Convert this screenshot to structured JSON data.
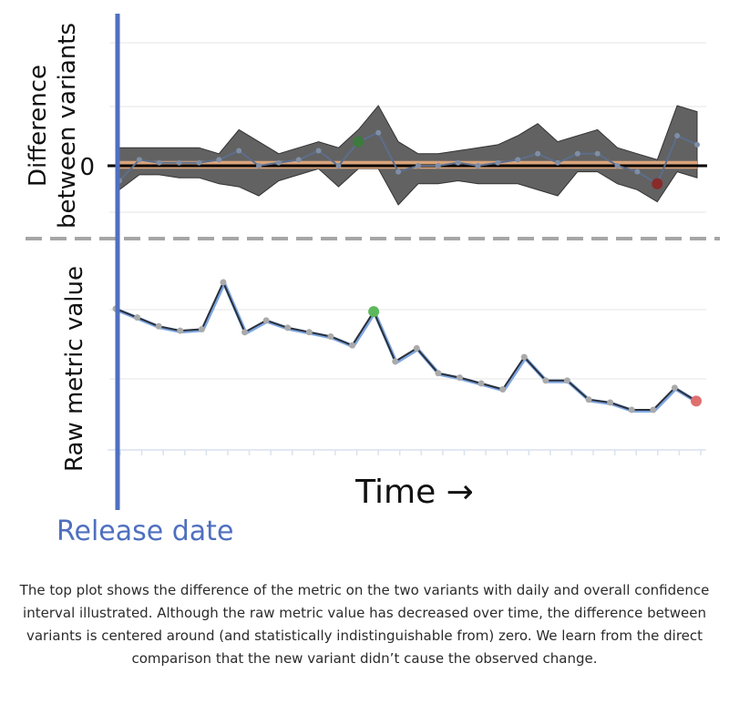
{
  "chart_data": [
    {
      "type": "line",
      "panel": "top",
      "ylabel": "Difference between variants",
      "ylabel_lines": [
        "Difference",
        "between variants"
      ],
      "y_tick_labels": [
        "0"
      ],
      "grid": true,
      "series": [
        {
          "values": [
            -0.25,
            0.1,
            0.05,
            0.05,
            0.05,
            0.1,
            0.25,
            0.0,
            0.05,
            0.1,
            0.25,
            0.0,
            0.4,
            0.55,
            -0.1,
            0.0,
            0.0,
            0.05,
            0.0,
            0.05,
            0.1,
            0.2,
            0.05,
            0.2,
            0.2,
            0.0,
            -0.1,
            -0.3,
            0.5,
            0.35
          ],
          "ci_upper": [
            0.3,
            0.3,
            0.3,
            0.3,
            0.3,
            0.2,
            0.6,
            0.4,
            0.2,
            0.3,
            0.4,
            0.3,
            0.6,
            1.0,
            0.4,
            0.2,
            0.2,
            0.25,
            0.3,
            0.35,
            0.5,
            0.7,
            0.4,
            0.5,
            0.6,
            0.3,
            0.2,
            0.1,
            1.0,
            0.9
          ],
          "ci_lower": [
            -0.4,
            -0.15,
            -0.15,
            -0.2,
            -0.2,
            -0.3,
            -0.35,
            -0.5,
            -0.25,
            -0.15,
            -0.05,
            -0.35,
            -0.05,
            -0.05,
            -0.65,
            -0.3,
            -0.3,
            -0.25,
            -0.3,
            -0.3,
            -0.3,
            -0.4,
            -0.5,
            -0.1,
            -0.1,
            -0.3,
            -0.4,
            -0.6,
            -0.1,
            -0.2
          ],
          "highlights": [
            {
              "index": 12,
              "color": "#3d7a3d"
            },
            {
              "index": 27,
              "color": "#8a2a2a"
            }
          ]
        }
      ],
      "overall_difference": 0.0,
      "overall_ci": [
        -0.05,
        0.08
      ],
      "colors": {
        "band": "#5a5a5a",
        "line": "#5c6e8c",
        "overall": "#f0b080",
        "zero": "#000000"
      }
    },
    {
      "type": "line",
      "panel": "bottom",
      "ylabel": "Raw metric value",
      "xlabel": "Time →",
      "grid": true,
      "series": [
        {
          "values": [
            8.6,
            8.3,
            8.0,
            7.85,
            7.9,
            9.5,
            7.8,
            8.2,
            7.95,
            7.8,
            7.65,
            7.35,
            8.5,
            6.8,
            7.25,
            6.4,
            6.25,
            6.05,
            5.85,
            6.95,
            6.15,
            6.15,
            5.5,
            5.4,
            5.15,
            5.15,
            5.9,
            5.45
          ],
          "highlights": [
            {
              "index": 12,
              "color": "#5cb85c"
            },
            {
              "index": 27,
              "color": "#e07070"
            }
          ]
        }
      ],
      "colors": {
        "line": "#2a2f3a",
        "shadow": "#7ea6e0",
        "point": "#aaaaaa"
      }
    }
  ],
  "annotations": {
    "release_label": "Release date",
    "release_color": "#4f6fbf"
  },
  "caption": "The top plot shows the difference of the metric on the two variants with daily and overall confidence interval illustrated. Although the raw metric value has decreased over time, the difference between variants is centered around (and statistically indistinguishable from) zero. We learn from the direct comparison that the new variant didn’t cause the observed change."
}
